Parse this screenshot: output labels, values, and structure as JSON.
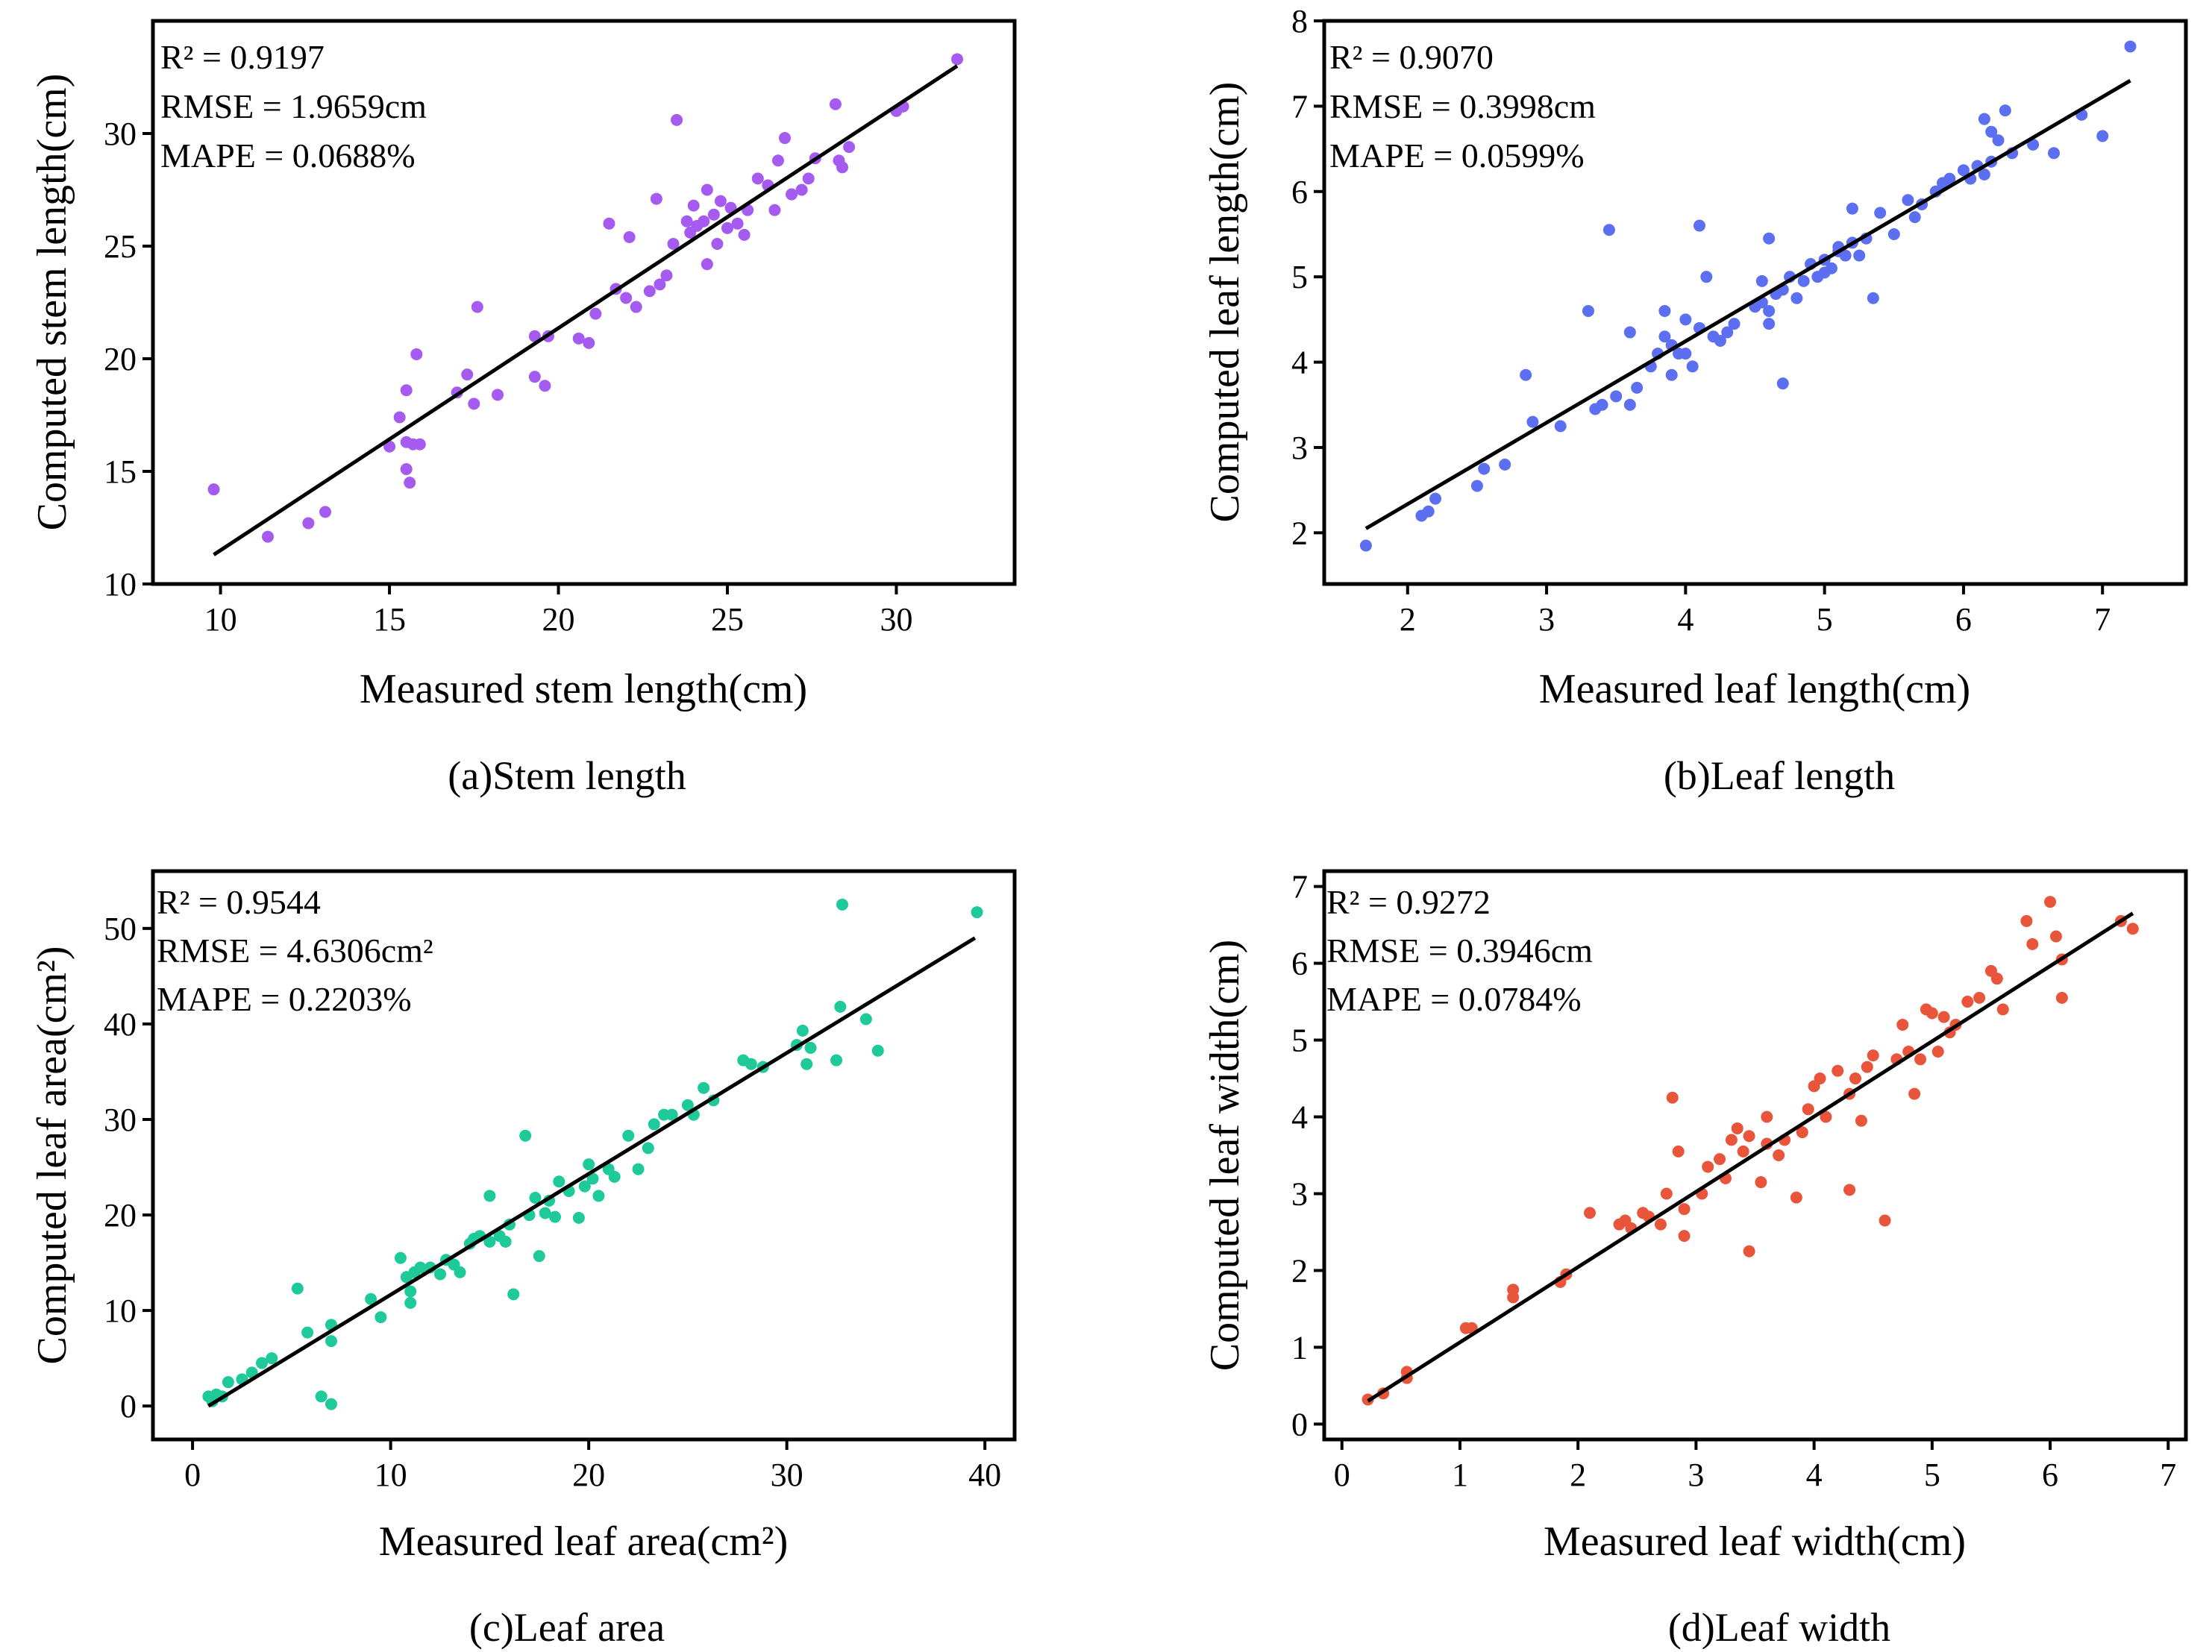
{
  "chart_data": [
    {
      "type": "scatter",
      "id": "a",
      "caption": "(a)Stem length",
      "xlabel": "Measured stem length(cm)",
      "ylabel": "Computed stem length(cm)",
      "xlim": [
        8,
        33.5
      ],
      "ylim": [
        10,
        35
      ],
      "xticks": [
        10,
        15,
        20,
        25,
        30
      ],
      "yticks": [
        10,
        15,
        20,
        25,
        30
      ],
      "color": "#a55af0",
      "stats": {
        "r2": "R² = 0.9197",
        "rmse": "RMSE = 1.9659cm",
        "mape": "MAPE = 0.0688%"
      },
      "fit_line": {
        "x": [
          9.8,
          31.8
        ],
        "y": [
          11.3,
          33.0
        ]
      },
      "points": [
        [
          9.8,
          14.2
        ],
        [
          11.4,
          12.1
        ],
        [
          12.6,
          12.7
        ],
        [
          13.1,
          13.2
        ],
        [
          15,
          16.1
        ],
        [
          15.3,
          17.4
        ],
        [
          15.5,
          15.1
        ],
        [
          15.5,
          16.3
        ],
        [
          15.5,
          18.6
        ],
        [
          15.6,
          14.5
        ],
        [
          15.7,
          16.2
        ],
        [
          15.8,
          20.2
        ],
        [
          15.9,
          16.2
        ],
        [
          17,
          18.5
        ],
        [
          17.3,
          19.3
        ],
        [
          17.5,
          18.0
        ],
        [
          17.6,
          22.3
        ],
        [
          18.2,
          18.4
        ],
        [
          19.3,
          21.0
        ],
        [
          19.3,
          19.2
        ],
        [
          19.6,
          18.8
        ],
        [
          19.7,
          21.0
        ],
        [
          20.6,
          20.9
        ],
        [
          20.9,
          20.7
        ],
        [
          21.1,
          22.0
        ],
        [
          21.5,
          26.0
        ],
        [
          21.7,
          23.1
        ],
        [
          22,
          22.7
        ],
        [
          22.1,
          25.4
        ],
        [
          22.3,
          22.3
        ],
        [
          22.7,
          23.0
        ],
        [
          22.9,
          27.1
        ],
        [
          23,
          23.3
        ],
        [
          23.2,
          23.7
        ],
        [
          23.4,
          25.1
        ],
        [
          23.5,
          30.6
        ],
        [
          23.8,
          26.1
        ],
        [
          23.9,
          25.6
        ],
        [
          24,
          26.8
        ],
        [
          24.1,
          25.9
        ],
        [
          24.3,
          26.1
        ],
        [
          24.4,
          27.5
        ],
        [
          24.4,
          24.2
        ],
        [
          24.6,
          26.4
        ],
        [
          24.7,
          25.1
        ],
        [
          24.8,
          27.0
        ],
        [
          25,
          25.8
        ],
        [
          25.1,
          26.7
        ],
        [
          25.3,
          26.0
        ],
        [
          25.5,
          25.5
        ],
        [
          25.6,
          26.6
        ],
        [
          25.9,
          28.0
        ],
        [
          26.2,
          27.7
        ],
        [
          26.4,
          26.6
        ],
        [
          26.5,
          28.8
        ],
        [
          26.7,
          29.8
        ],
        [
          26.9,
          27.3
        ],
        [
          27.2,
          27.5
        ],
        [
          27.4,
          28.0
        ],
        [
          27.6,
          28.9
        ],
        [
          28.2,
          31.3
        ],
        [
          28.3,
          28.8
        ],
        [
          28.4,
          28.5
        ],
        [
          28.6,
          29.4
        ],
        [
          30,
          31.0
        ],
        [
          30.2,
          31.2
        ],
        [
          31.8,
          33.3
        ]
      ]
    },
    {
      "type": "scatter",
      "id": "b",
      "caption": "(b)Leaf length",
      "xlabel": "Measured leaf length(cm)",
      "ylabel": "Computed leaf length(cm)",
      "xlim": [
        1.4,
        7.6
      ],
      "ylim": [
        1.4,
        8.0
      ],
      "xticks": [
        2,
        3,
        4,
        5,
        6,
        7
      ],
      "yticks": [
        2,
        3,
        4,
        5,
        6,
        7,
        8
      ],
      "color": "#5b6ff0",
      "stats": {
        "r2": "R² = 0.9070",
        "rmse": "RMSE = 0.3998cm",
        "mape": "MAPE = 0.0599%"
      },
      "fit_line": {
        "x": [
          1.7,
          7.2
        ],
        "y": [
          2.05,
          7.3
        ]
      },
      "points": [
        [
          1.7,
          1.85
        ],
        [
          2.1,
          2.2
        ],
        [
          2.15,
          2.25
        ],
        [
          2.2,
          2.4
        ],
        [
          2.5,
          2.55
        ],
        [
          2.55,
          2.75
        ],
        [
          2.7,
          2.8
        ],
        [
          2.85,
          3.85
        ],
        [
          2.9,
          3.3
        ],
        [
          3.1,
          3.25
        ],
        [
          3.3,
          4.6
        ],
        [
          3.35,
          3.45
        ],
        [
          3.4,
          3.5
        ],
        [
          3.45,
          5.55
        ],
        [
          3.5,
          3.6
        ],
        [
          3.6,
          3.5
        ],
        [
          3.6,
          4.35
        ],
        [
          3.65,
          3.7
        ],
        [
          3.75,
          3.95
        ],
        [
          3.8,
          4.1
        ],
        [
          3.85,
          4.3
        ],
        [
          3.85,
          4.6
        ],
        [
          3.9,
          3.85
        ],
        [
          3.9,
          4.2
        ],
        [
          3.95,
          4.1
        ],
        [
          4.0,
          4.5
        ],
        [
          4.0,
          4.1
        ],
        [
          4.05,
          3.95
        ],
        [
          4.1,
          4.4
        ],
        [
          4.1,
          5.6
        ],
        [
          4.15,
          5.0
        ],
        [
          4.2,
          4.3
        ],
        [
          4.25,
          4.25
        ],
        [
          4.3,
          4.35
        ],
        [
          4.35,
          4.45
        ],
        [
          4.5,
          4.65
        ],
        [
          4.55,
          4.7
        ],
        [
          4.55,
          4.95
        ],
        [
          4.6,
          4.6
        ],
        [
          4.6,
          5.45
        ],
        [
          4.6,
          4.45
        ],
        [
          4.65,
          4.8
        ],
        [
          4.7,
          4.85
        ],
        [
          4.7,
          3.75
        ],
        [
          4.75,
          5.0
        ],
        [
          4.8,
          4.75
        ],
        [
          4.85,
          4.95
        ],
        [
          4.9,
          5.15
        ],
        [
          4.95,
          5.0
        ],
        [
          5.0,
          5.2
        ],
        [
          5.0,
          5.05
        ],
        [
          5.05,
          5.1
        ],
        [
          5.1,
          5.3
        ],
        [
          5.1,
          5.35
        ],
        [
          5.15,
          5.25
        ],
        [
          5.2,
          5.4
        ],
        [
          5.2,
          5.8
        ],
        [
          5.25,
          5.25
        ],
        [
          5.3,
          5.45
        ],
        [
          5.35,
          4.75
        ],
        [
          5.4,
          5.75
        ],
        [
          5.5,
          5.5
        ],
        [
          5.6,
          5.9
        ],
        [
          5.65,
          5.7
        ],
        [
          5.7,
          5.85
        ],
        [
          5.8,
          6.0
        ],
        [
          5.85,
          6.1
        ],
        [
          5.9,
          6.15
        ],
        [
          6.0,
          6.25
        ],
        [
          6.05,
          6.15
        ],
        [
          6.1,
          6.3
        ],
        [
          6.15,
          6.85
        ],
        [
          6.15,
          6.2
        ],
        [
          6.2,
          6.35
        ],
        [
          6.2,
          6.7
        ],
        [
          6.25,
          6.6
        ],
        [
          6.3,
          6.95
        ],
        [
          6.35,
          6.45
        ],
        [
          6.5,
          6.55
        ],
        [
          6.65,
          6.45
        ],
        [
          6.85,
          6.9
        ],
        [
          7.0,
          6.65
        ],
        [
          7.2,
          7.7
        ]
      ]
    },
    {
      "type": "scatter",
      "id": "c",
      "caption": "(c)Leaf area",
      "xlabel": "Measured leaf area(cm²)",
      "ylabel": "Computed leaf area(cm²)",
      "xlim": [
        -2,
        41.5
      ],
      "ylim": [
        -3.5,
        56
      ],
      "xticks": [
        0,
        10,
        20,
        30,
        40
      ],
      "yticks": [
        0,
        10,
        20,
        30,
        40,
        50
      ],
      "color": "#1ec99a",
      "stats": {
        "r2": "R² = 0.9544",
        "rmse": "RMSE = 4.6306cm²",
        "mape": "MAPE = 0.2203%"
      },
      "fit_line": {
        "x": [
          0.8,
          39.5
        ],
        "y": [
          0.0,
          49.0
        ]
      },
      "points": [
        [
          0.8,
          1.0
        ],
        [
          1.0,
          0.5
        ],
        [
          1.2,
          1.2
        ],
        [
          1.5,
          1.0
        ],
        [
          1.8,
          2.5
        ],
        [
          2.5,
          2.8
        ],
        [
          3.0,
          3.5
        ],
        [
          3.5,
          4.5
        ],
        [
          4.0,
          5.0
        ],
        [
          5.3,
          12.3
        ],
        [
          5.8,
          7.7
        ],
        [
          6.5,
          1.0
        ],
        [
          7.0,
          0.2
        ],
        [
          7.0,
          8.5
        ],
        [
          7.0,
          6.8
        ],
        [
          9.0,
          11.2
        ],
        [
          9.5,
          9.3
        ],
        [
          10.5,
          15.5
        ],
        [
          10.8,
          13.5
        ],
        [
          11,
          12.0
        ],
        [
          11,
          10.8
        ],
        [
          11.2,
          14.0
        ],
        [
          11.5,
          14.5
        ],
        [
          12,
          14.5
        ],
        [
          12.5,
          13.8
        ],
        [
          12.8,
          15.3
        ],
        [
          13.2,
          14.8
        ],
        [
          13.5,
          14.0
        ],
        [
          14,
          17.0
        ],
        [
          14.2,
          17.5
        ],
        [
          14.5,
          17.8
        ],
        [
          15,
          17.2
        ],
        [
          15,
          22.0
        ],
        [
          15.5,
          17.8
        ],
        [
          15.8,
          17.2
        ],
        [
          16,
          19.0
        ],
        [
          16.2,
          11.7
        ],
        [
          16.8,
          28.3
        ],
        [
          17,
          20.0
        ],
        [
          17.3,
          21.8
        ],
        [
          17.5,
          15.7
        ],
        [
          17.8,
          20.2
        ],
        [
          18,
          21.5
        ],
        [
          18.3,
          19.8
        ],
        [
          18.5,
          23.5
        ],
        [
          19,
          22.5
        ],
        [
          19.5,
          19.7
        ],
        [
          19.8,
          23.0
        ],
        [
          20,
          25.3
        ],
        [
          20.2,
          23.8
        ],
        [
          20.5,
          22.0
        ],
        [
          21,
          24.8
        ],
        [
          21.3,
          24.0
        ],
        [
          22,
          28.3
        ],
        [
          22.5,
          24.8
        ],
        [
          23,
          27.0
        ],
        [
          23.3,
          29.5
        ],
        [
          23.8,
          30.5
        ],
        [
          24.2,
          30.5
        ],
        [
          25,
          31.5
        ],
        [
          25.3,
          30.5
        ],
        [
          25.8,
          33.3
        ],
        [
          26.3,
          32.0
        ],
        [
          27.8,
          36.2
        ],
        [
          28.2,
          35.8
        ],
        [
          28.8,
          35.5
        ],
        [
          30.5,
          37.8
        ],
        [
          30.8,
          39.3
        ],
        [
          31,
          35.8
        ],
        [
          31.2,
          37.5
        ],
        [
          32.5,
          36.2
        ],
        [
          32.7,
          41.8
        ],
        [
          32.8,
          52.5
        ],
        [
          34.0,
          40.5
        ],
        [
          34.6,
          37.2
        ],
        [
          39.6,
          51.7
        ]
      ]
    },
    {
      "type": "scatter",
      "id": "d",
      "caption": "(d)Leaf width",
      "xlabel": "Measured leaf width(cm)",
      "ylabel": "Computed leaf width(cm)",
      "xlim": [
        -0.15,
        7.15
      ],
      "ylim": [
        -0.2,
        7.2
      ],
      "xticks": [
        0,
        1,
        2,
        3,
        4,
        5,
        6,
        7
      ],
      "yticks": [
        0,
        1,
        2,
        3,
        4,
        5,
        6,
        7
      ],
      "color": "#e8553a",
      "stats": {
        "r2": "R² = 0.9272",
        "rmse": "RMSE = 0.3946cm",
        "mape": "MAPE = 0.0784%"
      },
      "fit_line": {
        "x": [
          0.22,
          6.7
        ],
        "y": [
          0.3,
          6.65
        ]
      },
      "points": [
        [
          0.22,
          0.32
        ],
        [
          0.35,
          0.4
        ],
        [
          0.55,
          0.6
        ],
        [
          0.55,
          0.68
        ],
        [
          1.05,
          1.25
        ],
        [
          1.1,
          1.25
        ],
        [
          1.45,
          1.65
        ],
        [
          1.45,
          1.75
        ],
        [
          1.85,
          1.85
        ],
        [
          1.9,
          1.95
        ],
        [
          2.1,
          2.75
        ],
        [
          2.35,
          2.6
        ],
        [
          2.4,
          2.65
        ],
        [
          2.45,
          2.55
        ],
        [
          2.55,
          2.75
        ],
        [
          2.6,
          2.7
        ],
        [
          2.7,
          2.6
        ],
        [
          2.75,
          3.0
        ],
        [
          2.8,
          4.25
        ],
        [
          2.85,
          3.55
        ],
        [
          2.9,
          2.45
        ],
        [
          2.9,
          2.8
        ],
        [
          3.05,
          3.0
        ],
        [
          3.1,
          3.35
        ],
        [
          3.2,
          3.45
        ],
        [
          3.25,
          3.2
        ],
        [
          3.3,
          3.7
        ],
        [
          3.35,
          3.85
        ],
        [
          3.4,
          3.55
        ],
        [
          3.45,
          2.25
        ],
        [
          3.45,
          3.75
        ],
        [
          3.55,
          3.15
        ],
        [
          3.6,
          3.65
        ],
        [
          3.6,
          4.0
        ],
        [
          3.7,
          3.5
        ],
        [
          3.75,
          3.7
        ],
        [
          3.85,
          2.95
        ],
        [
          3.9,
          3.8
        ],
        [
          3.95,
          4.1
        ],
        [
          4.0,
          4.4
        ],
        [
          4.05,
          4.5
        ],
        [
          4.1,
          4.0
        ],
        [
          4.2,
          4.6
        ],
        [
          4.3,
          4.3
        ],
        [
          4.3,
          3.05
        ],
        [
          4.35,
          4.5
        ],
        [
          4.4,
          3.95
        ],
        [
          4.45,
          4.65
        ],
        [
          4.5,
          4.8
        ],
        [
          4.6,
          2.65
        ],
        [
          4.7,
          4.75
        ],
        [
          4.75,
          5.2
        ],
        [
          4.8,
          4.85
        ],
        [
          4.85,
          4.3
        ],
        [
          4.9,
          4.75
        ],
        [
          4.95,
          5.4
        ],
        [
          5.0,
          5.35
        ],
        [
          5.05,
          4.85
        ],
        [
          5.1,
          5.3
        ],
        [
          5.15,
          5.1
        ],
        [
          5.2,
          5.2
        ],
        [
          5.3,
          5.5
        ],
        [
          5.4,
          5.55
        ],
        [
          5.5,
          5.9
        ],
        [
          5.55,
          5.8
        ],
        [
          5.6,
          5.4
        ],
        [
          5.8,
          6.55
        ],
        [
          5.85,
          6.25
        ],
        [
          6.0,
          6.8
        ],
        [
          6.05,
          6.35
        ],
        [
          6.1,
          5.55
        ],
        [
          6.1,
          6.05
        ],
        [
          6.6,
          6.55
        ],
        [
          6.7,
          6.45
        ]
      ]
    }
  ]
}
